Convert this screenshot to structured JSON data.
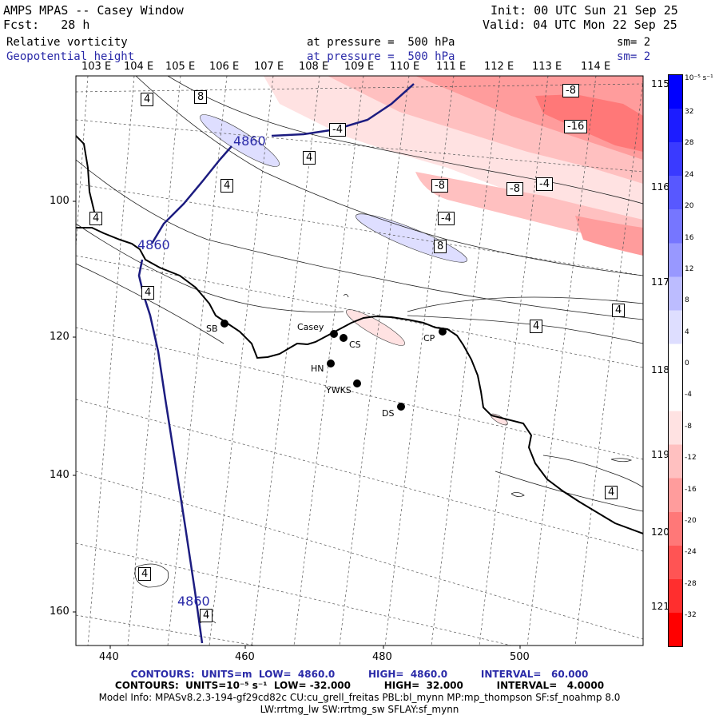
{
  "header": {
    "model": "AMPS MPAS -- Casey Window",
    "fcst": "Fcst:   28 h",
    "init": "Init: 00 UTC Sun 21 Sep 25",
    "valid": "Valid: 04 UTC Mon 22 Sep 25",
    "field1": "Relative vorticity",
    "field1_level": "at pressure =  500 hPa",
    "field1_sm": "sm= 2",
    "field2": "Geopotential height",
    "field2_level": "at pressure =  500 hPa",
    "field2_sm": "sm= 2"
  },
  "lon_labels": [
    "103 E",
    "104 E",
    "105 E",
    "106 E",
    "107 E",
    "108 E",
    "109 E",
    "110 E",
    "111 E",
    "112 E",
    "113 E",
    "114 E"
  ],
  "lat_labels_right": [
    "115 E",
    "116 E",
    "117 E",
    "118 E",
    "119 E",
    "120 E",
    "121 E"
  ],
  "axes": {
    "x_ticks": [
      "440",
      "460",
      "480",
      "500"
    ],
    "y_ticks": [
      "100",
      "120",
      "140",
      "160"
    ]
  },
  "colorbar": {
    "unit": "10⁻⁵ s⁻¹",
    "labels": [
      "32",
      "28",
      "24",
      "20",
      "16",
      "12",
      "8",
      "4",
      "0",
      "-4",
      "-8",
      "-12",
      "-16",
      "-20",
      "-24",
      "-28",
      "-32"
    ],
    "colors": [
      "#0000ff",
      "#1c1cff",
      "#3a3aff",
      "#5858ff",
      "#7676ff",
      "#9898ff",
      "#bcbcff",
      "#dedeff",
      "#ffffff",
      "#ffffff",
      "#ffe2e2",
      "#ffc0c0",
      "#ff9c9c",
      "#ff7878",
      "#ff5454",
      "#ff2e2e",
      "#ff0000"
    ]
  },
  "contour_labels": {
    "height": [
      "4860",
      "4860",
      "4860"
    ],
    "vorticity": [
      "4",
      "8",
      "-4",
      "4",
      "4",
      "4",
      "-8",
      "-8",
      "-4",
      "-4",
      "8",
      "-16",
      "-8",
      "4",
      "4",
      "4",
      "4",
      "4",
      "4"
    ]
  },
  "stations": [
    "SB",
    "Casey",
    "CS",
    "CP",
    "HN",
    "YWKS",
    "DS"
  ],
  "footer": {
    "line1": "CONTOURS:  UNITS=m  LOW=  4860.0          HIGH=  4860.0          INTERVAL=   60.000",
    "line2": "CONTOURS:  UNITS=10⁻⁵ s⁻¹  LOW= -32.000          HIGH=  32.000          INTERVAL=   4.0000",
    "line3": "Model Info: MPASv8.2.3-194-gf29cd82c CU:cu_grell_freitas PBL:bl_mynn MP:mp_thompson SF:sf_noahmp 8.0",
    "line4": "LW:rrtmg_lw SW:rrtmg_sw SFLAY:sf_mynn"
  }
}
